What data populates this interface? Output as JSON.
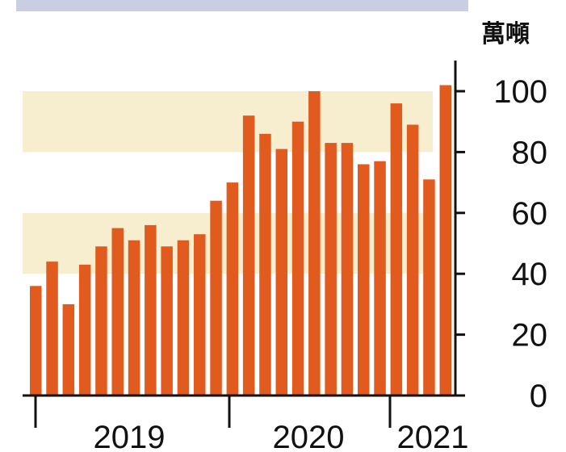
{
  "colors": {
    "bar": "#E15A1E",
    "band": "#F7EDCF",
    "axis": "#111111",
    "header_blur": "#2B3A8C"
  },
  "chart_data": {
    "type": "bar",
    "unit": "萬噸",
    "ylim": [
      0,
      100
    ],
    "yticks": [
      0,
      20,
      40,
      60,
      80,
      100
    ],
    "grid": false,
    "y_axis_side": "right",
    "bands": [
      [
        80,
        100
      ],
      [
        40,
        60
      ]
    ],
    "year_labels": [
      "2019",
      "2020",
      "2021"
    ],
    "series": [
      {
        "values": [
          36,
          44,
          30,
          43,
          49,
          55,
          51,
          56,
          49,
          51,
          53,
          64,
          70,
          92,
          86,
          81,
          90,
          100,
          83,
          83,
          76,
          77,
          96,
          89,
          71,
          102
        ]
      }
    ]
  }
}
